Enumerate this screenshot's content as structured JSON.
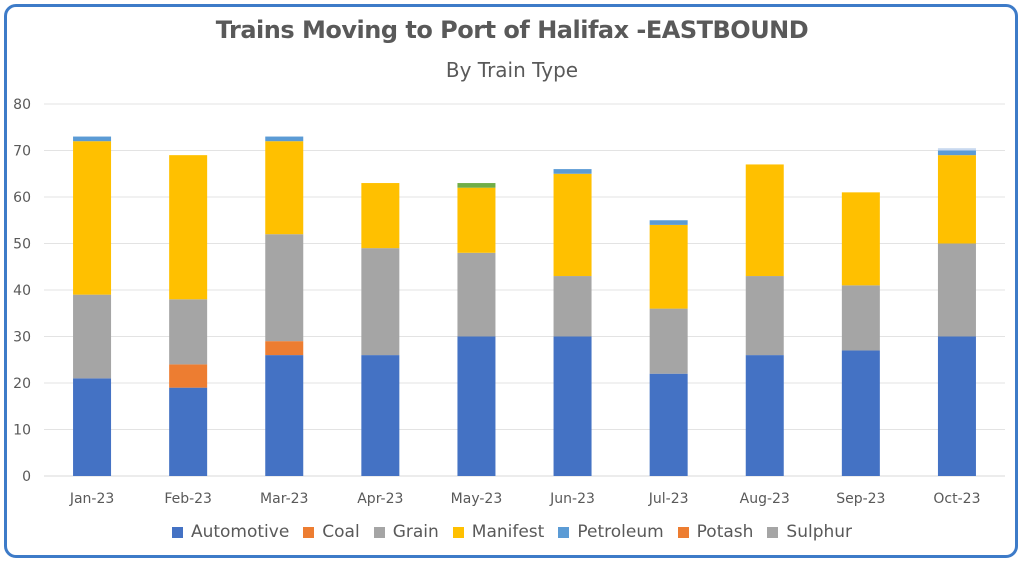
{
  "chart_data": {
    "type": "bar",
    "stacked": true,
    "title": "Trains Moving to Port of Halifax -EASTBOUND",
    "subtitle": "By Train Type",
    "categories": [
      "Jan-23",
      "Feb-23",
      "Mar-23",
      "Apr-23",
      "May-23",
      "Jun-23",
      "Jul-23",
      "Aug-23",
      "Sep-23",
      "Oct-23"
    ],
    "ylim": [
      0,
      80
    ],
    "yticks": [
      0,
      10,
      20,
      30,
      40,
      50,
      60,
      70,
      80
    ],
    "grid": true,
    "legend_position": "bottom",
    "series": [
      {
        "name": "Automotive",
        "color": "#4472c4",
        "values": [
          21,
          19,
          26,
          26,
          30,
          30,
          22,
          26,
          27,
          30
        ]
      },
      {
        "name": "Coal",
        "color": "#ed7d31",
        "values": [
          0,
          5,
          3,
          0,
          0,
          0,
          0,
          0,
          0,
          0
        ]
      },
      {
        "name": "Grain",
        "color": "#a5a5a5",
        "values": [
          18,
          14,
          23,
          23,
          18,
          13,
          14,
          17,
          14,
          20
        ]
      },
      {
        "name": "Manifest",
        "color": "#ffc000",
        "values": [
          33,
          31,
          20,
          14,
          14,
          22,
          18,
          24,
          20,
          19
        ]
      },
      {
        "name": "Petroleum",
        "color": "#5b9bd5",
        "values": [
          1,
          0,
          1,
          0,
          0,
          1,
          1,
          0,
          0,
          1
        ]
      },
      {
        "name": "Potash",
        "color": "#ed7d31",
        "values": [
          0,
          0,
          0,
          0,
          0,
          0,
          0,
          0,
          0,
          0
        ]
      },
      {
        "name": "Sulphur",
        "color": "#a5a5a5",
        "values": [
          0,
          0,
          0,
          0,
          0,
          0,
          0,
          0,
          0,
          0
        ]
      },
      {
        "name": "",
        "color": "#70ad47",
        "values": [
          0,
          0,
          0,
          0,
          1,
          0,
          0,
          0,
          0,
          0
        ]
      },
      {
        "name": "",
        "color": "#c9d9f0",
        "values": [
          0,
          0,
          0,
          0,
          0,
          0,
          0,
          0,
          0,
          0.5
        ]
      }
    ]
  }
}
